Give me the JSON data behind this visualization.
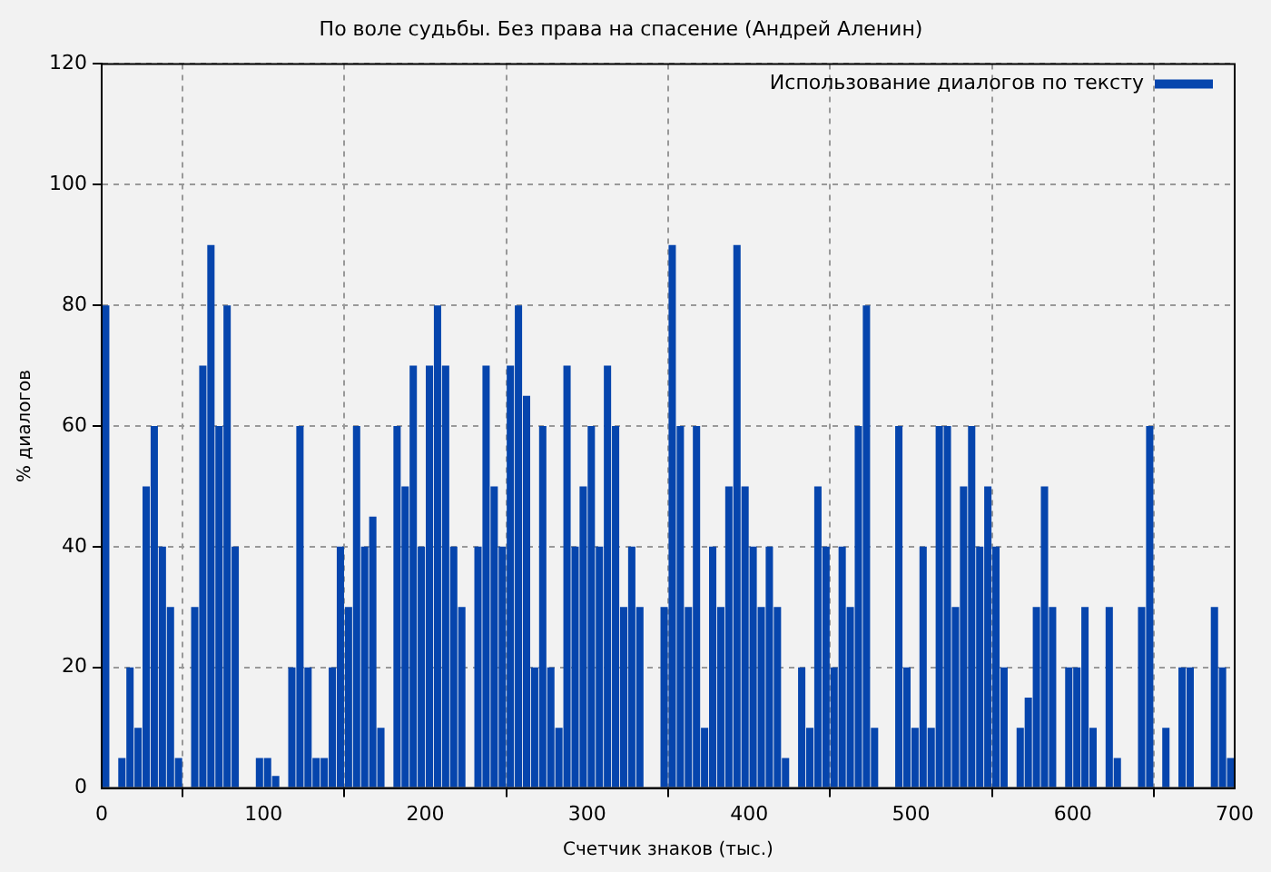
{
  "chart_data": {
    "type": "bar",
    "title": "По воле судьбы. Без права на спасение (Андрей Аленин)",
    "xlabel": "Счетчик знаков (тыс.)",
    "ylabel": "% диалогов",
    "x": [
      2.5,
      7.5,
      12.5,
      17.5,
      22.5,
      27.5,
      32.5,
      37.5,
      42.5,
      47.5,
      52.5,
      57.5,
      62.5,
      67.5,
      72.5,
      77.5,
      82.5,
      87.5,
      92.5,
      97.5,
      102.5,
      107.5,
      112.5,
      117.5,
      122.5,
      127.5,
      132.5,
      137.5,
      142.5,
      147.5,
      152.5,
      157.5,
      162.5,
      167.5,
      172.5,
      177.5,
      182.5,
      187.5,
      192.5,
      197.5,
      202.5,
      207.5,
      212.5,
      217.5,
      222.5,
      227.5,
      232.5,
      237.5,
      242.5,
      247.5,
      252.5,
      257.5,
      262.5,
      267.5,
      272.5,
      277.5,
      282.5,
      287.5,
      292.5,
      297.5,
      302.5,
      307.5,
      312.5,
      317.5,
      322.5,
      327.5,
      332.5,
      337.5,
      342.5,
      347.5,
      352.5,
      357.5,
      362.5,
      367.5,
      372.5,
      377.5,
      382.5,
      387.5,
      392.5,
      397.5,
      402.5,
      407.5,
      412.5,
      417.5,
      422.5,
      427.5,
      432.5,
      437.5,
      442.5,
      447.5,
      452.5,
      457.5,
      462.5,
      467.5,
      472.5,
      477.5,
      482.5,
      487.5,
      492.5,
      497.5,
      502.5,
      507.5,
      512.5,
      517.5,
      522.5,
      527.5,
      532.5,
      537.5,
      542.5,
      547.5,
      552.5,
      557.5,
      562.5,
      567.5,
      572.5,
      577.5,
      582.5,
      587.5,
      592.5,
      597.5,
      602.5,
      607.5,
      612.5,
      617.5,
      622.5,
      627.5,
      632.5,
      637.5,
      642.5,
      647.5,
      652.5,
      657.5,
      662.5,
      667.5,
      672.5,
      677.5,
      682.5,
      687.5,
      692.5,
      697.5
    ],
    "series": [
      {
        "name": "Использование диалогов по тексту",
        "color": "#0645ad",
        "values": [
          80,
          0,
          5,
          20,
          10,
          50,
          60,
          40,
          30,
          5,
          0,
          30,
          70,
          90,
          60,
          80,
          40,
          0,
          0,
          5,
          5,
          2,
          0,
          20,
          60,
          20,
          5,
          5,
          20,
          40,
          30,
          60,
          40,
          45,
          10,
          0,
          60,
          50,
          70,
          40,
          70,
          80,
          70,
          40,
          30,
          0,
          40,
          70,
          50,
          40,
          70,
          80,
          65,
          20,
          60,
          20,
          10,
          70,
          40,
          50,
          60,
          40,
          70,
          60,
          30,
          40,
          30,
          0,
          0,
          30,
          90,
          60,
          30,
          60,
          10,
          40,
          30,
          50,
          90,
          50,
          40,
          30,
          40,
          30,
          5,
          0,
          20,
          10,
          50,
          40,
          20,
          40,
          30,
          60,
          80,
          10,
          0,
          0,
          60,
          20,
          10,
          40,
          10,
          60,
          60,
          30,
          50,
          60,
          40,
          50,
          40,
          20,
          0,
          10,
          15,
          30,
          50,
          30,
          0,
          20,
          20,
          30,
          10,
          0,
          30,
          5,
          0,
          0,
          30,
          60,
          0,
          10,
          0,
          20,
          20,
          0,
          0,
          30,
          20,
          5
        ]
      }
    ],
    "xlim": [
      0,
      700
    ],
    "xticks": [
      0,
      100,
      200,
      300,
      400,
      500,
      600,
      700
    ],
    "ylim": [
      0,
      120
    ],
    "yticks": [
      0,
      20,
      40,
      60,
      80,
      100,
      120
    ],
    "grid": true,
    "legend": "top right"
  }
}
